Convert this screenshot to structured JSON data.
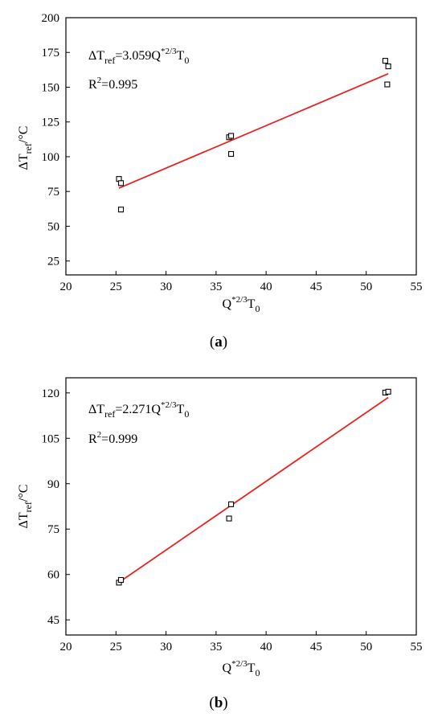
{
  "chart_data": [
    {
      "type": "scatter",
      "panel_label": {
        "open": "(",
        "letter": "a",
        "close": ")"
      },
      "xlabel": {
        "main": "Q",
        "sup": "*2/3",
        "tail": "T",
        "sub": "0"
      },
      "ylabel": {
        "main": "ΔT",
        "sub": "ref",
        "tail": "/°C"
      },
      "xlim": [
        20,
        55
      ],
      "ylim": [
        15,
        200
      ],
      "xticks": [
        20,
        25,
        30,
        35,
        40,
        45,
        50,
        55
      ],
      "yticks": [
        25,
        50,
        75,
        100,
        125,
        150,
        175,
        200
      ],
      "points": [
        {
          "x": 25.3,
          "y": 84
        },
        {
          "x": 25.5,
          "y": 81
        },
        {
          "x": 25.5,
          "y": 62
        },
        {
          "x": 36.3,
          "y": 114
        },
        {
          "x": 36.5,
          "y": 115
        },
        {
          "x": 36.5,
          "y": 102
        },
        {
          "x": 51.9,
          "y": 169
        },
        {
          "x": 52.2,
          "y": 165
        },
        {
          "x": 52.1,
          "y": 152
        }
      ],
      "fit_line": {
        "x": [
          25.3,
          52.2
        ],
        "y": [
          77.4,
          159.7
        ],
        "color": "#e8231f"
      },
      "equation": {
        "lhs": "ΔT",
        "lhs_sub": "ref",
        "eq": "=3.059Q",
        "sup": "*2/3",
        "tail": "T",
        "tail_sub": "0"
      },
      "r2": {
        "main": "R",
        "sup": "2",
        "value": "=0.995"
      }
    },
    {
      "type": "scatter",
      "panel_label": {
        "open": "(",
        "letter": "b",
        "close": ")"
      },
      "xlabel": {
        "main": "Q",
        "sup": "*2/3",
        "tail": "T",
        "sub": "0"
      },
      "ylabel": {
        "main": "ΔT",
        "sub": "ref",
        "tail": "/°C"
      },
      "xlim": [
        20,
        55
      ],
      "ylim": [
        40,
        125
      ],
      "xticks": [
        20,
        25,
        30,
        35,
        40,
        45,
        50,
        55
      ],
      "yticks": [
        45,
        60,
        75,
        90,
        105,
        120
      ],
      "points": [
        {
          "x": 25.3,
          "y": 57.3
        },
        {
          "x": 25.5,
          "y": 58.2
        },
        {
          "x": 36.3,
          "y": 78.5
        },
        {
          "x": 36.5,
          "y": 83.2
        },
        {
          "x": 51.9,
          "y": 120.1
        },
        {
          "x": 52.2,
          "y": 120.4
        }
      ],
      "fit_line": {
        "x": [
          25.3,
          52.2
        ],
        "y": [
          57.4,
          118.5
        ],
        "color": "#e8231f"
      },
      "equation": {
        "lhs": "ΔT",
        "lhs_sub": "ref",
        "eq": "=2.271Q",
        "sup": "*2/3",
        "tail": "T",
        "tail_sub": "0"
      },
      "r2": {
        "main": "R",
        "sup": "2",
        "value": "=0.999"
      }
    }
  ]
}
